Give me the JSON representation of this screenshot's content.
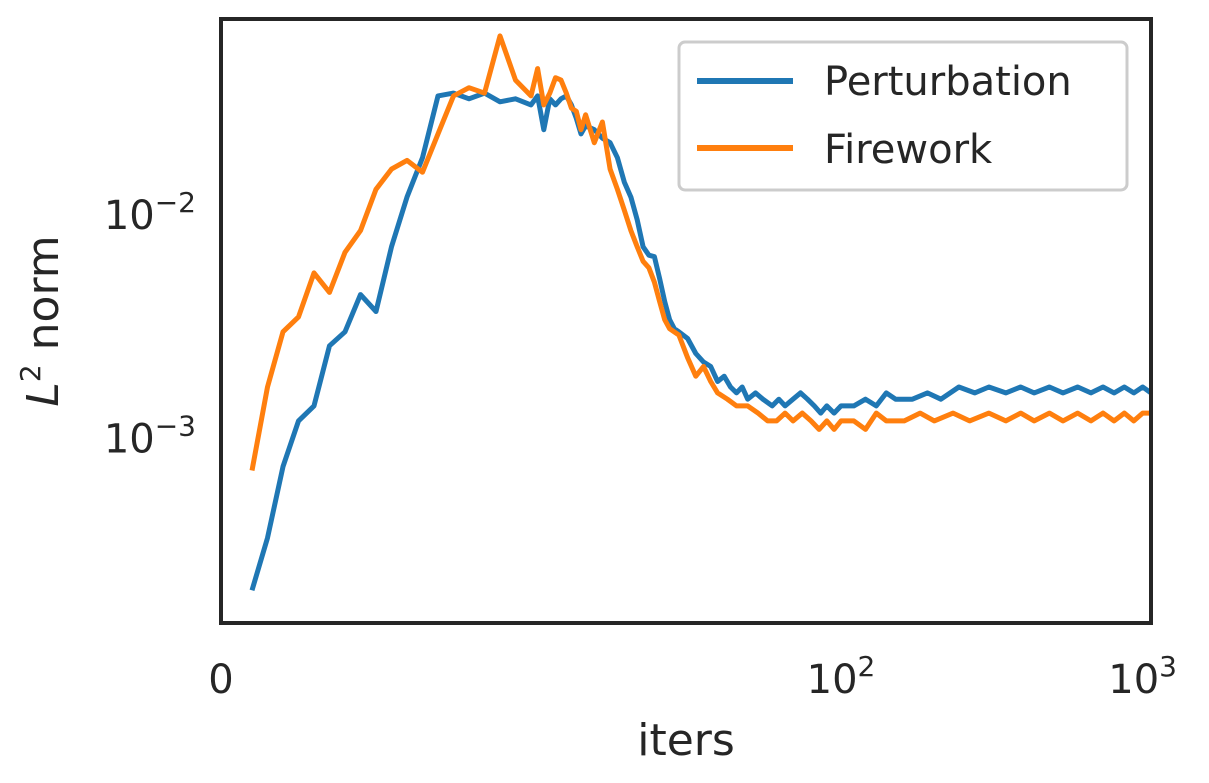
{
  "chart_data": {
    "type": "line",
    "title": "",
    "xlabel": "iters",
    "ylabel": {
      "base": "L",
      "sup": "2",
      "rest": " norm"
    },
    "x_scale": "symlog",
    "y_scale": "log",
    "xlim": [
      0,
      1000
    ],
    "ylim": [
      0.00015,
      0.075
    ],
    "x_ticks": [
      {
        "value": 0,
        "base": "0",
        "exp": ""
      },
      {
        "value": 100,
        "base": "10",
        "exp": "2"
      },
      {
        "value": 1000,
        "base": "10",
        "exp": "3"
      }
    ],
    "y_ticks": [
      {
        "value": 0.001,
        "base": "10",
        "exp": "−3"
      },
      {
        "value": 0.01,
        "base": "10",
        "exp": "−2"
      }
    ],
    "grid": false,
    "legend": {
      "placement": "upper right"
    },
    "series": [
      {
        "name": "Perturbation",
        "color": "#1f77b4",
        "points": [
          [
            1,
            0.00021
          ],
          [
            1.5,
            0.00036
          ],
          [
            2,
            0.00075
          ],
          [
            2.5,
            0.0012
          ],
          [
            3,
            0.0014
          ],
          [
            3.5,
            0.0026
          ],
          [
            4,
            0.003
          ],
          [
            4.5,
            0.0044
          ],
          [
            5,
            0.0037
          ],
          [
            5.5,
            0.0072
          ],
          [
            6,
            0.012
          ],
          [
            6.5,
            0.018
          ],
          [
            7,
            0.034
          ],
          [
            7.5,
            0.035
          ],
          [
            8,
            0.033
          ],
          [
            8.5,
            0.035
          ],
          [
            9,
            0.032
          ],
          [
            9.5,
            0.033
          ],
          [
            10,
            0.031
          ],
          [
            10.5,
            0.034
          ],
          [
            11,
            0.024
          ],
          [
            11.5,
            0.033
          ],
          [
            12,
            0.031
          ],
          [
            12.5,
            0.033
          ],
          [
            13,
            0.034
          ],
          [
            13.5,
            0.031
          ],
          [
            14,
            0.027
          ],
          [
            14.5,
            0.023
          ],
          [
            15,
            0.025
          ],
          [
            16,
            0.024
          ],
          [
            17,
            0.022
          ],
          [
            18,
            0.021
          ],
          [
            19,
            0.018
          ],
          [
            20,
            0.014
          ],
          [
            21,
            0.012
          ],
          [
            22,
            0.0095
          ],
          [
            23,
            0.0072
          ],
          [
            24,
            0.0066
          ],
          [
            25,
            0.0065
          ],
          [
            26,
            0.0052
          ],
          [
            27,
            0.0041
          ],
          [
            28,
            0.0034
          ],
          [
            29,
            0.0031
          ],
          [
            30,
            0.003
          ],
          [
            32,
            0.0028
          ],
          [
            34,
            0.0024
          ],
          [
            36,
            0.0022
          ],
          [
            38,
            0.0021
          ],
          [
            40,
            0.0018
          ],
          [
            42,
            0.0019
          ],
          [
            44,
            0.0017
          ],
          [
            46,
            0.0016
          ],
          [
            48,
            0.0017
          ],
          [
            50,
            0.0015
          ],
          [
            53,
            0.0016
          ],
          [
            56,
            0.0015
          ],
          [
            60,
            0.0014
          ],
          [
            63,
            0.0015
          ],
          [
            66,
            0.0014
          ],
          [
            70,
            0.0015
          ],
          [
            74,
            0.0016
          ],
          [
            78,
            0.0015
          ],
          [
            82,
            0.0014
          ],
          [
            86,
            0.0013
          ],
          [
            90,
            0.0014
          ],
          [
            95,
            0.0013
          ],
          [
            100,
            0.0014
          ],
          [
            110,
            0.0014
          ],
          [
            120,
            0.0015
          ],
          [
            130,
            0.0014
          ],
          [
            140,
            0.0016
          ],
          [
            150,
            0.0015
          ],
          [
            170,
            0.0015
          ],
          [
            190,
            0.0016
          ],
          [
            210,
            0.0015
          ],
          [
            240,
            0.0017
          ],
          [
            270,
            0.0016
          ],
          [
            300,
            0.0017
          ],
          [
            340,
            0.0016
          ],
          [
            380,
            0.0017
          ],
          [
            420,
            0.0016
          ],
          [
            470,
            0.0017
          ],
          [
            520,
            0.0016
          ],
          [
            580,
            0.0017
          ],
          [
            640,
            0.0016
          ],
          [
            700,
            0.0017
          ],
          [
            760,
            0.0016
          ],
          [
            820,
            0.0017
          ],
          [
            880,
            0.0016
          ],
          [
            940,
            0.0017
          ],
          [
            1000,
            0.0016
          ]
        ]
      },
      {
        "name": "Firework",
        "color": "#ff7f0e",
        "points": [
          [
            1,
            0.00072
          ],
          [
            1.5,
            0.0017
          ],
          [
            2,
            0.003
          ],
          [
            2.5,
            0.0035
          ],
          [
            3,
            0.0055
          ],
          [
            3.5,
            0.0045
          ],
          [
            4,
            0.0068
          ],
          [
            4.5,
            0.0085
          ],
          [
            5,
            0.013
          ],
          [
            5.5,
            0.016
          ],
          [
            6,
            0.0175
          ],
          [
            6.5,
            0.0155
          ],
          [
            7,
            0.023
          ],
          [
            7.5,
            0.034
          ],
          [
            8,
            0.037
          ],
          [
            8.5,
            0.035
          ],
          [
            9,
            0.063
          ],
          [
            9.5,
            0.04
          ],
          [
            10,
            0.034
          ],
          [
            10.5,
            0.045
          ],
          [
            11,
            0.031
          ],
          [
            11.5,
            0.035
          ],
          [
            12,
            0.041
          ],
          [
            12.5,
            0.04
          ],
          [
            13,
            0.035
          ],
          [
            13.5,
            0.03
          ],
          [
            14,
            0.029
          ],
          [
            14.5,
            0.024
          ],
          [
            15,
            0.028
          ],
          [
            16,
            0.021
          ],
          [
            17,
            0.026
          ],
          [
            18,
            0.016
          ],
          [
            19,
            0.013
          ],
          [
            20,
            0.0105
          ],
          [
            21,
            0.0085
          ],
          [
            22,
            0.0072
          ],
          [
            23,
            0.0062
          ],
          [
            24,
            0.0058
          ],
          [
            25,
            0.005
          ],
          [
            26,
            0.0041
          ],
          [
            27,
            0.0034
          ],
          [
            28,
            0.0031
          ],
          [
            30,
            0.0029
          ],
          [
            32,
            0.0023
          ],
          [
            34,
            0.0019
          ],
          [
            36,
            0.0021
          ],
          [
            38,
            0.0018
          ],
          [
            40,
            0.0016
          ],
          [
            43,
            0.0015
          ],
          [
            46,
            0.0014
          ],
          [
            50,
            0.0014
          ],
          [
            54,
            0.0013
          ],
          [
            58,
            0.0012
          ],
          [
            62,
            0.0012
          ],
          [
            66,
            0.0013
          ],
          [
            70,
            0.0012
          ],
          [
            75,
            0.0013
          ],
          [
            80,
            0.0012
          ],
          [
            85,
            0.0011
          ],
          [
            90,
            0.0012
          ],
          [
            95,
            0.0011
          ],
          [
            100,
            0.0012
          ],
          [
            110,
            0.0012
          ],
          [
            120,
            0.0011
          ],
          [
            130,
            0.0013
          ],
          [
            140,
            0.0012
          ],
          [
            160,
            0.0012
          ],
          [
            180,
            0.0013
          ],
          [
            200,
            0.0012
          ],
          [
            230,
            0.0013
          ],
          [
            260,
            0.0012
          ],
          [
            300,
            0.0013
          ],
          [
            340,
            0.0012
          ],
          [
            380,
            0.0013
          ],
          [
            420,
            0.0012
          ],
          [
            470,
            0.0013
          ],
          [
            520,
            0.0012
          ],
          [
            580,
            0.0013
          ],
          [
            640,
            0.0012
          ],
          [
            700,
            0.0013
          ],
          [
            760,
            0.0012
          ],
          [
            820,
            0.0013
          ],
          [
            880,
            0.0012
          ],
          [
            940,
            0.0013
          ],
          [
            1000,
            0.0013
          ]
        ]
      }
    ]
  }
}
